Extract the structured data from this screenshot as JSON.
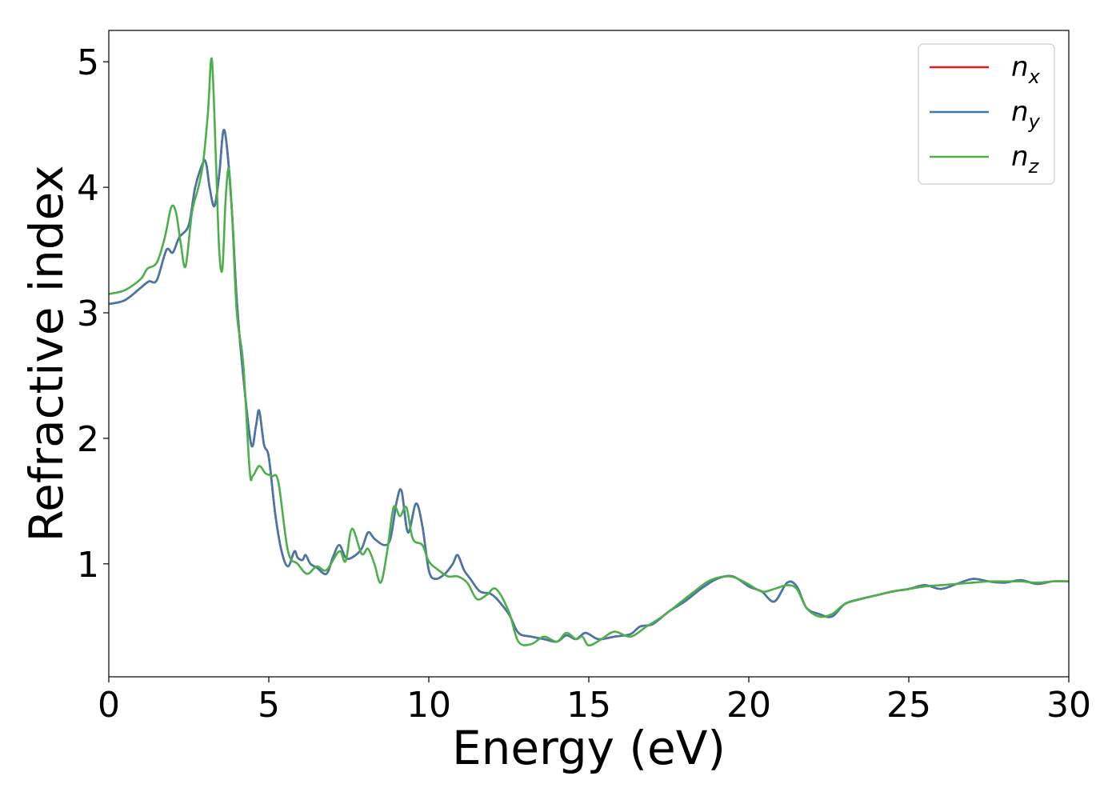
{
  "chart_data": {
    "type": "line",
    "title": "",
    "xlabel": "Energy (eV)",
    "ylabel": "Refractive index",
    "xlim": [
      0,
      30
    ],
    "ylim": [
      0.1,
      5.25
    ],
    "xticks": [
      0,
      5,
      10,
      15,
      20,
      25,
      30
    ],
    "yticks": [
      1,
      2,
      3,
      4,
      5
    ],
    "grid": false,
    "legend_position": "top-right",
    "series": [
      {
        "name": "n",
        "subscript": "x",
        "color": "#e41a1c",
        "x": [
          0,
          0.5,
          1,
          1.25,
          1.5,
          1.8,
          2,
          2.2,
          2.5,
          2.7,
          2.95,
          3.05,
          3.15,
          3.3,
          3.45,
          3.58,
          3.7,
          3.85,
          4,
          4.2,
          4.45,
          4.6,
          4.7,
          4.85,
          5,
          5.2,
          5.4,
          5.6,
          5.8,
          5.9,
          6.05,
          6.15,
          6.3,
          6.5,
          6.8,
          7,
          7.2,
          7.4,
          7.6,
          7.9,
          8.1,
          8.3,
          8.6,
          8.8,
          9,
          9.15,
          9.35,
          9.6,
          9.8,
          10,
          10.2,
          10.5,
          10.75,
          10.9,
          11.1,
          11.3,
          11.6,
          12,
          12.5,
          12.8,
          13.2,
          13.6,
          14,
          14.3,
          14.6,
          14.9,
          15.3,
          15.8,
          16.3,
          16.6,
          17,
          17.5,
          18,
          18.5,
          19,
          19.5,
          20,
          20.4,
          20.8,
          21.2,
          21.5,
          21.8,
          22.2,
          22.6,
          23,
          23.5,
          24,
          24.5,
          25,
          25.5,
          26,
          26.5,
          27,
          27.5,
          28,
          28.5,
          29,
          29.5,
          30
        ],
        "y": [
          3.07,
          3.1,
          3.2,
          3.25,
          3.26,
          3.5,
          3.48,
          3.6,
          3.7,
          4.0,
          4.2,
          4.18,
          4.0,
          3.85,
          4.1,
          4.45,
          4.3,
          3.8,
          3.1,
          2.5,
          1.95,
          2.1,
          2.22,
          1.95,
          1.85,
          1.4,
          1.1,
          0.98,
          1.1,
          1.05,
          1.03,
          1.07,
          1.0,
          0.97,
          0.92,
          1.05,
          1.15,
          1.05,
          1.05,
          1.12,
          1.25,
          1.2,
          1.15,
          1.2,
          1.5,
          1.58,
          1.25,
          1.48,
          1.3,
          0.95,
          0.88,
          0.92,
          1.0,
          1.07,
          0.95,
          0.88,
          0.78,
          0.75,
          0.6,
          0.45,
          0.42,
          0.4,
          0.38,
          0.43,
          0.4,
          0.45,
          0.4,
          0.42,
          0.44,
          0.5,
          0.52,
          0.62,
          0.7,
          0.8,
          0.88,
          0.9,
          0.82,
          0.78,
          0.7,
          0.85,
          0.82,
          0.65,
          0.6,
          0.58,
          0.68,
          0.72,
          0.75,
          0.78,
          0.8,
          0.83,
          0.8,
          0.84,
          0.88,
          0.86,
          0.85,
          0.87,
          0.84,
          0.86,
          0.86
        ]
      },
      {
        "name": "n",
        "subscript": "y",
        "color": "#4477aa",
        "x": [
          0,
          0.5,
          1,
          1.25,
          1.5,
          1.8,
          2,
          2.2,
          2.5,
          2.7,
          2.95,
          3.05,
          3.15,
          3.3,
          3.45,
          3.58,
          3.7,
          3.85,
          4,
          4.2,
          4.45,
          4.6,
          4.7,
          4.85,
          5,
          5.2,
          5.4,
          5.6,
          5.8,
          5.9,
          6.05,
          6.15,
          6.3,
          6.5,
          6.8,
          7,
          7.2,
          7.4,
          7.6,
          7.9,
          8.1,
          8.3,
          8.6,
          8.8,
          9,
          9.15,
          9.35,
          9.6,
          9.8,
          10,
          10.2,
          10.5,
          10.75,
          10.9,
          11.1,
          11.3,
          11.6,
          12,
          12.5,
          12.8,
          13.2,
          13.6,
          14,
          14.3,
          14.6,
          14.9,
          15.3,
          15.8,
          16.3,
          16.6,
          17,
          17.5,
          18,
          18.5,
          19,
          19.5,
          20,
          20.4,
          20.8,
          21.2,
          21.5,
          21.8,
          22.2,
          22.6,
          23,
          23.5,
          24,
          24.5,
          25,
          25.5,
          26,
          26.5,
          27,
          27.5,
          28,
          28.5,
          29,
          29.5,
          30
        ],
        "y": [
          3.07,
          3.1,
          3.2,
          3.25,
          3.26,
          3.5,
          3.48,
          3.6,
          3.7,
          4.0,
          4.2,
          4.18,
          4.0,
          3.85,
          4.1,
          4.45,
          4.3,
          3.8,
          3.1,
          2.5,
          1.95,
          2.1,
          2.22,
          1.95,
          1.85,
          1.4,
          1.1,
          0.98,
          1.1,
          1.05,
          1.03,
          1.07,
          1.0,
          0.97,
          0.92,
          1.05,
          1.15,
          1.05,
          1.05,
          1.12,
          1.25,
          1.2,
          1.15,
          1.2,
          1.5,
          1.58,
          1.25,
          1.48,
          1.3,
          0.95,
          0.88,
          0.92,
          1.0,
          1.07,
          0.95,
          0.88,
          0.78,
          0.75,
          0.6,
          0.45,
          0.42,
          0.4,
          0.38,
          0.43,
          0.4,
          0.45,
          0.4,
          0.42,
          0.44,
          0.5,
          0.52,
          0.62,
          0.7,
          0.8,
          0.88,
          0.9,
          0.82,
          0.78,
          0.7,
          0.85,
          0.82,
          0.65,
          0.6,
          0.58,
          0.68,
          0.72,
          0.75,
          0.78,
          0.8,
          0.83,
          0.8,
          0.84,
          0.88,
          0.86,
          0.85,
          0.87,
          0.84,
          0.86,
          0.86
        ]
      },
      {
        "name": "n",
        "subscript": "z",
        "color": "#4daf4a",
        "x": [
          0,
          0.5,
          1,
          1.2,
          1.5,
          1.75,
          1.95,
          2.1,
          2.25,
          2.4,
          2.6,
          2.8,
          2.95,
          3.1,
          3.22,
          3.35,
          3.45,
          3.55,
          3.65,
          3.75,
          3.85,
          4,
          4.2,
          4.4,
          4.5,
          4.7,
          4.9,
          5.1,
          5.3,
          5.6,
          5.9,
          6.2,
          6.5,
          6.8,
          7.2,
          7.4,
          7.6,
          7.9,
          8.1,
          8.3,
          8.5,
          8.7,
          8.9,
          9.1,
          9.3,
          9.5,
          9.8,
          10,
          10.3,
          10.6,
          10.9,
          11.2,
          11.5,
          11.8,
          12.1,
          12.5,
          12.8,
          13.2,
          13.6,
          14,
          14.3,
          14.6,
          14.8,
          15,
          15.4,
          15.8,
          16.3,
          16.8,
          17.3,
          17.8,
          18.3,
          18.8,
          19.4,
          19.9,
          20.4,
          20.8,
          21.2,
          21.5,
          21.8,
          22.2,
          22.6,
          23,
          23.5,
          24,
          24.5,
          25,
          25.5,
          26,
          26.5,
          27,
          27.5,
          28,
          28.5,
          29,
          29.5,
          30
        ],
        "y": [
          3.15,
          3.18,
          3.27,
          3.35,
          3.4,
          3.6,
          3.84,
          3.8,
          3.55,
          3.37,
          3.8,
          4.0,
          4.2,
          4.6,
          5.02,
          4.2,
          3.5,
          3.35,
          3.9,
          4.15,
          3.8,
          3.0,
          2.6,
          1.75,
          1.7,
          1.78,
          1.72,
          1.7,
          1.65,
          1.1,
          1.0,
          0.92,
          0.98,
          0.95,
          1.1,
          1.02,
          1.28,
          1.08,
          1.12,
          1.0,
          0.85,
          1.1,
          1.45,
          1.38,
          1.45,
          1.2,
          1.15,
          1.02,
          0.95,
          0.9,
          0.9,
          0.85,
          0.72,
          0.75,
          0.8,
          0.62,
          0.38,
          0.36,
          0.42,
          0.38,
          0.45,
          0.4,
          0.42,
          0.35,
          0.4,
          0.46,
          0.42,
          0.5,
          0.58,
          0.68,
          0.78,
          0.87,
          0.9,
          0.85,
          0.78,
          0.8,
          0.83,
          0.8,
          0.65,
          0.58,
          0.6,
          0.68,
          0.72,
          0.75,
          0.78,
          0.8,
          0.82,
          0.83,
          0.84,
          0.85,
          0.86,
          0.86,
          0.86,
          0.85,
          0.86,
          0.86
        ]
      }
    ]
  }
}
